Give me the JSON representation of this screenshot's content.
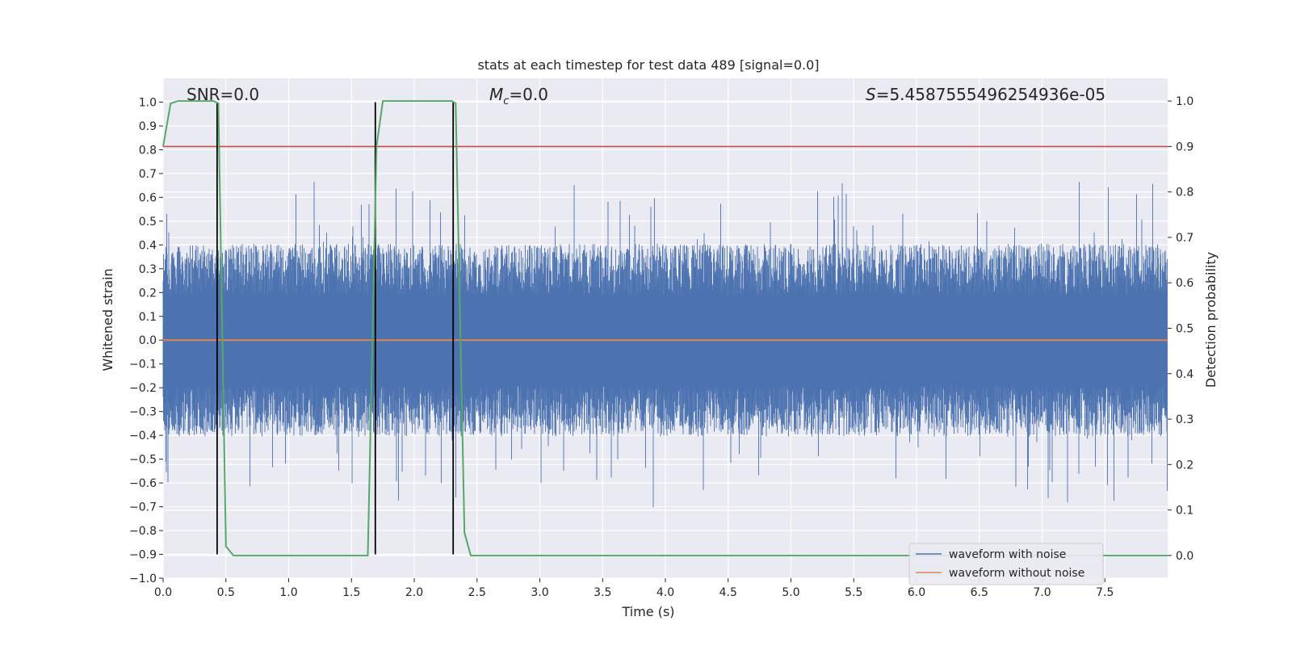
{
  "chart_data": {
    "type": "line",
    "title": "stats at each timestep for test data 489 [signal=0.0]",
    "xlabel": "Time (s)",
    "ylabel": "Whitened strain",
    "y2label": "Detection probability",
    "xlim": [
      0,
      8
    ],
    "ylim": [
      -1.0,
      1.1
    ],
    "y2lim": [
      -0.05,
      1.05
    ],
    "xticks": [
      "0.0",
      "0.5",
      "1.0",
      "1.5",
      "2.0",
      "2.5",
      "3.0",
      "3.5",
      "4.0",
      "4.5",
      "5.0",
      "5.5",
      "6.0",
      "6.5",
      "7.0",
      "7.5"
    ],
    "yticks": [
      "−1.0",
      "−0.9",
      "−0.8",
      "−0.7",
      "−0.6",
      "−0.5",
      "−0.4",
      "−0.3",
      "−0.2",
      "−0.1",
      "0.0",
      "0.1",
      "0.2",
      "0.3",
      "0.4",
      "0.5",
      "0.6",
      "0.7",
      "0.8",
      "0.9",
      "1.0"
    ],
    "y2ticks": [
      "0.0",
      "0.1",
      "0.2",
      "0.3",
      "0.4",
      "0.5",
      "0.6",
      "0.7",
      "0.8",
      "0.9",
      "1.0"
    ],
    "grid": true,
    "legend_position": "lower-right",
    "annotations": {
      "snr": "SNR=0.0",
      "mc_symbol": "M",
      "mc_sub": "c",
      "mc_value": "=0.0",
      "s_symbol": "S",
      "s_value": "=5.4587555496254936e-05"
    },
    "series": [
      {
        "name": "waveform with noise",
        "color": "#4c72b0",
        "note_envelope": [
          0.9,
          -0.9
        ]
      },
      {
        "name": "waveform without noise",
        "color": "#dd8452",
        "constant": 0.0
      }
    ],
    "detection_probability": {
      "color": "#55a868",
      "x": [
        0.0,
        0.06,
        0.12,
        0.2,
        0.3,
        0.4,
        0.44,
        0.5,
        0.56,
        0.7,
        1.0,
        1.3,
        1.6,
        1.63,
        1.7,
        1.75,
        1.9,
        2.1,
        2.3,
        2.33,
        2.4,
        2.45,
        2.6,
        3.0,
        4.0,
        5.0,
        6.0,
        7.0,
        8.0
      ],
      "y": [
        0.9,
        0.995,
        1.0,
        1.0,
        1.0,
        1.0,
        0.995,
        0.02,
        0.0,
        0.0,
        0.0,
        0.0,
        0.0,
        0.0,
        0.9,
        1.0,
        1.0,
        1.0,
        1.0,
        0.995,
        0.05,
        0.0,
        0.0,
        0.0,
        0.0,
        0.0,
        0.0,
        0.0,
        0.0
      ]
    },
    "threshold": {
      "value": 0.9,
      "axis": "y2",
      "color": "#c44e52"
    },
    "vertical_markers": {
      "x": [
        0.43,
        1.69,
        2.31
      ],
      "y_range": [
        -0.9,
        1.0
      ],
      "color": "#000000"
    },
    "noise_style": {
      "median_abs": 0.27,
      "peak": 1.0,
      "min": -0.9
    }
  }
}
